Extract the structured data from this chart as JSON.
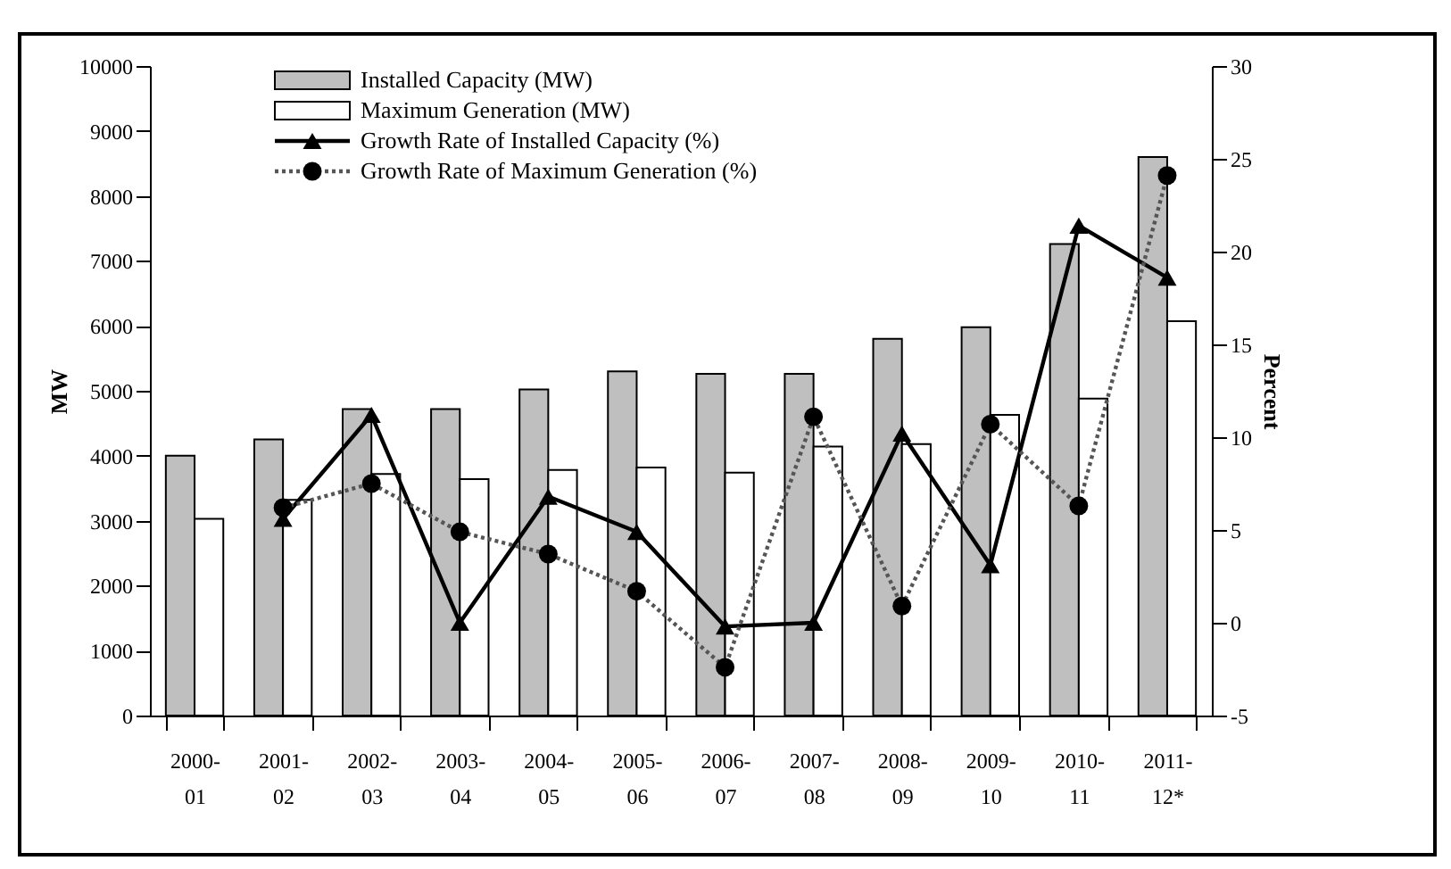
{
  "chart_data": {
    "type": "bar",
    "ylabel": "MW",
    "y2label": "Percent",
    "categories": [
      "2000-\n01",
      "2001-\n02",
      "2002-\n03",
      "2003-\n04",
      "2004-\n05",
      "2005-\n06",
      "2006-\n07",
      "2007-\n08",
      "2008-\n09",
      "2009-\n10",
      "2010-\n11",
      "2011-\n12*"
    ],
    "series": [
      {
        "name": "Installed Capacity (MW)",
        "type": "bar",
        "color": "#bfbfbf",
        "values": [
          4000,
          4250,
          4720,
          4720,
          5020,
          5300,
          5260,
          5260,
          5800,
          5980,
          7260,
          8600
        ]
      },
      {
        "name": "Maximum Generation (MW)",
        "type": "bar",
        "color": "#ffffff",
        "values": [
          3030,
          3320,
          3720,
          3640,
          3780,
          3820,
          3740,
          4140,
          4180,
          4630,
          4880,
          6070
        ]
      },
      {
        "name": "Growth Rate of Installed Capacity (%)",
        "type": "line",
        "axis": "y2",
        "color": "#000000",
        "marker": "triangle",
        "line_style": "solid",
        "values": [
          null,
          5.6,
          11.2,
          0.0,
          6.8,
          4.9,
          -0.2,
          0.0,
          10.2,
          3.1,
          21.4,
          18.6
        ]
      },
      {
        "name": "Growth Rate of Maximum Generation (%)",
        "type": "line",
        "axis": "y2",
        "color": "#555555",
        "marker": "circle",
        "line_style": "dotted",
        "values": [
          null,
          6.2,
          7.5,
          4.9,
          3.7,
          1.7,
          -2.4,
          11.1,
          0.9,
          10.7,
          6.3,
          24.1
        ]
      }
    ],
    "ylim": [
      0,
      10000
    ],
    "yticks": [
      0,
      1000,
      2000,
      3000,
      4000,
      5000,
      6000,
      7000,
      8000,
      9000,
      10000
    ],
    "y2lim": [
      -5,
      30
    ],
    "y2ticks": [
      -5,
      0,
      5,
      10,
      15,
      20,
      25,
      30
    ],
    "grid": false,
    "legend": "top left"
  }
}
